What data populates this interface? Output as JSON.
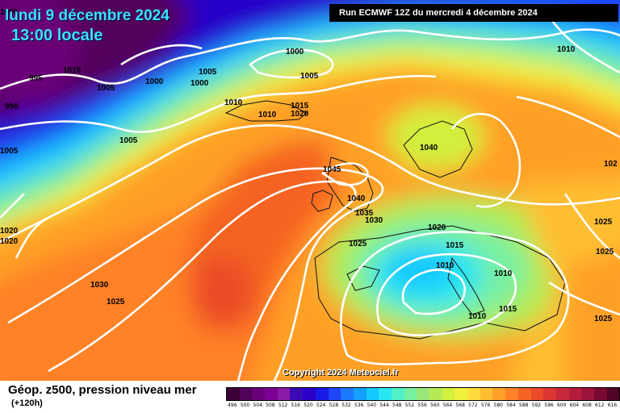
{
  "header": {
    "date": "lundi 9 décembre 2024",
    "time": "13:00 locale",
    "run": "Run ECMWF 12Z du mercredi 4 décembre 2024"
  },
  "copyright": "Copyright 2024 Meteociel.fr",
  "footer": {
    "title": "Géop. z500, pression niveau mer",
    "subtitle": "(+120h)"
  },
  "scale": {
    "labels": [
      "496",
      "500",
      "504",
      "508",
      "512",
      "516",
      "520",
      "524",
      "528",
      "532",
      "536",
      "540",
      "544",
      "548",
      "552",
      "556",
      "560",
      "564",
      "568",
      "572",
      "576",
      "580",
      "584",
      "588",
      "592",
      "596",
      "600",
      "604",
      "608",
      "612",
      "616"
    ],
    "colors": [
      "#3d0036",
      "#52005a",
      "#6a0078",
      "#7d0094",
      "#8a1aa8",
      "#3c0ab4",
      "#2800c8",
      "#1a1ae6",
      "#1e46f5",
      "#1e78ff",
      "#14a0ff",
      "#14c8ff",
      "#28e6f0",
      "#50f0c8",
      "#78f0a0",
      "#9be678",
      "#b4eb55",
      "#d2f03c",
      "#f0f03c",
      "#ffdc3c",
      "#ffbe32",
      "#ffa028",
      "#ff8228",
      "#f56423",
      "#eb4b28",
      "#dc3732",
      "#c8283c",
      "#b41e3c",
      "#9b143c",
      "#780a32",
      "#500528"
    ]
  },
  "pressure_labels": [
    "1000",
    "1005",
    "1010",
    "995",
    "990",
    "1005",
    "1000",
    "1000",
    "1000",
    "1005",
    "1010",
    "1015",
    "1020",
    "1010",
    "1005",
    "1005",
    "1040",
    "1045",
    "1040",
    "1035",
    "1030",
    "1020",
    "1025",
    "1015",
    "1010",
    "1010",
    "1015",
    "1010",
    "1025",
    "1025",
    "1030",
    "1025",
    "1020",
    "1020",
    "1025",
    "1010",
    "102"
  ]
}
